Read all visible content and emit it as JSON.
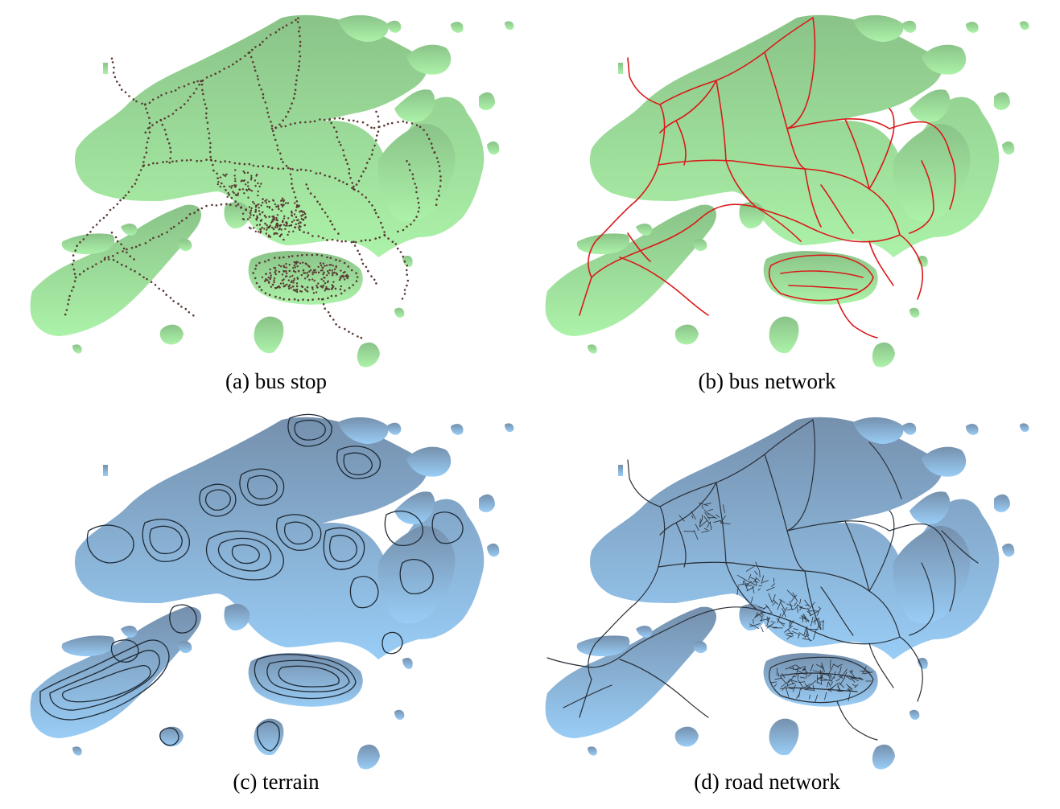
{
  "colors": {
    "green_top": "#8ec68c",
    "green_bottom": "#a9eea6",
    "blue_top": "#7896b3",
    "blue_bottom": "#96c8f2",
    "bus_stop_dots": "#5a3a34",
    "bus_network_lines": "#d91a1a",
    "terrain_contours": "#1e2a36",
    "road_network_lines": "#2a3038"
  },
  "panels": [
    {
      "id": "a",
      "caption": "(a) bus stop",
      "layer": "bus-stop-points",
      "base": "green"
    },
    {
      "id": "b",
      "caption": "(b) bus network",
      "layer": "bus-route-lines",
      "base": "green"
    },
    {
      "id": "c",
      "caption": "(c) terrain",
      "layer": "terrain-contours",
      "base": "blue"
    },
    {
      "id": "d",
      "caption": "(d) road network",
      "layer": "road-lines",
      "base": "blue"
    }
  ]
}
